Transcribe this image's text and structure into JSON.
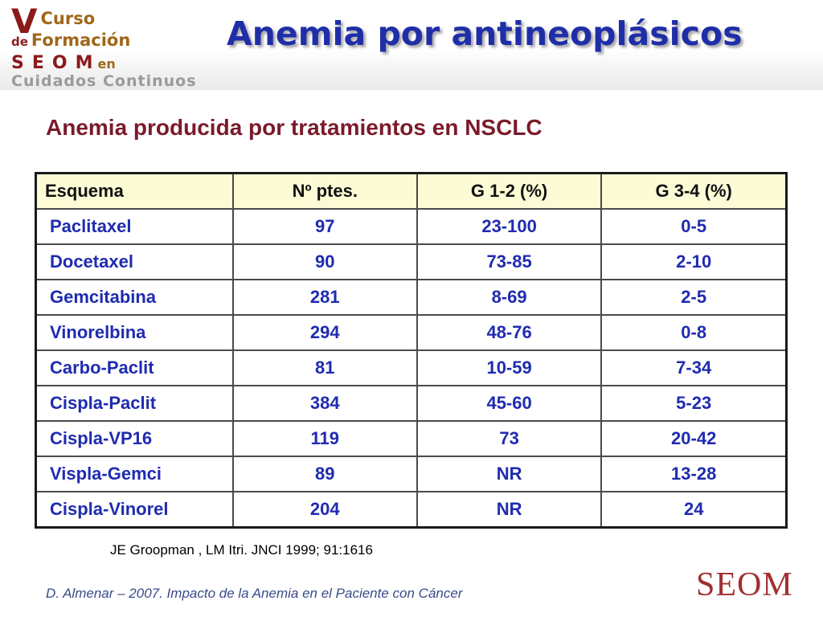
{
  "logo": {
    "line1_v": "V",
    "line1_word": "Curso",
    "line2_de": "de",
    "line2_word": "Formación",
    "line3_org": "SEOM",
    "line3_en": "en",
    "line4": "Cuidados Continuos"
  },
  "title": "Anemia por antineoplásicos",
  "subtitle": "Anemia producida por tratamientos en NSCLC",
  "table": {
    "headers": [
      "Esquema",
      "Nº ptes.",
      "G 1-2 (%)",
      "G 3-4 (%)"
    ],
    "rows": [
      [
        "Paclitaxel",
        "97",
        "23-100",
        "0-5"
      ],
      [
        "Docetaxel",
        "90",
        "73-85",
        "2-10"
      ],
      [
        "Gemcitabina",
        "281",
        "8-69",
        "2-5"
      ],
      [
        "Vinorelbina",
        "294",
        "48-76",
        "0-8"
      ],
      [
        "Carbo-Paclit",
        "81",
        "10-59",
        "7-34"
      ],
      [
        "Cispla-Paclit",
        "384",
        "45-60",
        "5-23"
      ],
      [
        "Cispla-VP16",
        "119",
        "73",
        "20-42"
      ],
      [
        "Vispla-Gemci",
        "89",
        "NR",
        "13-28"
      ],
      [
        "Cispla-Vinorel",
        "204",
        "NR",
        "24"
      ]
    ]
  },
  "reference": "JE Groopman , LM Itri. JNCI 1999; 91:1616",
  "footer": {
    "citation": "D. Almenar – 2007.   Impacto de la Anemia en el Paciente con Cáncer",
    "logo": "SEOM"
  },
  "colors": {
    "title": "#1f2ea8",
    "subtitle": "#7a1a2a",
    "table_text": "#1f2bb0",
    "header_bg": "#fcfbd6",
    "footer_text": "#3a4b8a",
    "footer_logo": "#a03030"
  }
}
